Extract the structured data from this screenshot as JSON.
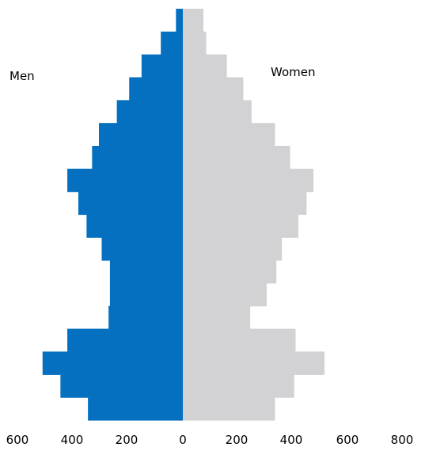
{
  "chart_data": {
    "type": "bar",
    "orientation": "horizontal",
    "layout": "population-pyramid",
    "series": [
      {
        "name": "Men",
        "color": "#0570c0",
        "values": [
          25,
          80,
          150,
          195,
          240,
          305,
          330,
          420,
          380,
          350,
          295,
          265,
          265,
          270,
          420,
          510,
          445,
          345
        ]
      },
      {
        "name": "Women",
        "color": "#d2d1d3",
        "values": [
          75,
          85,
          160,
          220,
          250,
          335,
          390,
          475,
          450,
          420,
          360,
          340,
          305,
          245,
          410,
          515,
          405,
          335
        ]
      }
    ],
    "x_ticks": [
      "600",
      "400",
      "200",
      "0",
      "200",
      "400",
      "600",
      "800"
    ],
    "xlim": [
      -600,
      800
    ],
    "grid": false
  }
}
